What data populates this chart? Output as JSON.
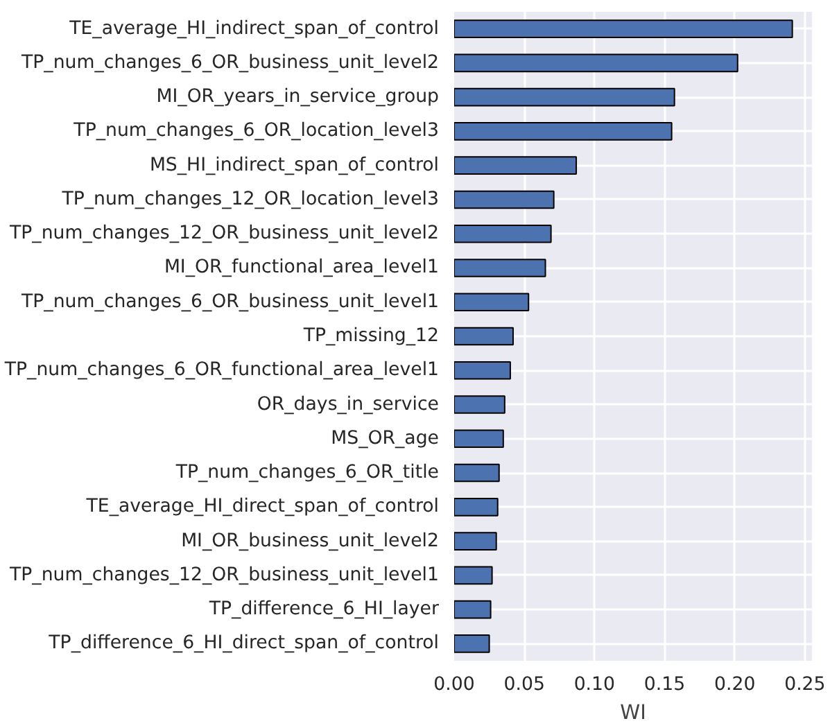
{
  "chart_data": {
    "type": "bar",
    "orientation": "horizontal",
    "xlabel": "WI",
    "categories": [
      "TE_average_HI_indirect_span_of_control",
      "TP_num_changes_6_OR_business_unit_level2",
      "MI_OR_years_in_service_group",
      "TP_num_changes_6_OR_location_level3",
      "MS_HI_indirect_span_of_control",
      "TP_num_changes_12_OR_location_level3",
      "TP_num_changes_12_OR_business_unit_level2",
      "MI_OR_functional_area_level1",
      "TP_num_changes_6_OR_business_unit_level1",
      "TP_missing_12",
      "TP_num_changes_6_OR_functional_area_level1",
      "OR_days_in_service",
      "MS_OR_age",
      "TP_num_changes_6_OR_title",
      "TE_average_HI_direct_span_of_control",
      "MI_OR_business_unit_level2",
      "TP_num_changes_12_OR_business_unit_level1",
      "TP_difference_6_HI_layer",
      "TP_difference_6_HI_direct_span_of_control"
    ],
    "values": [
      0.241,
      0.202,
      0.157,
      0.155,
      0.087,
      0.071,
      0.069,
      0.065,
      0.053,
      0.042,
      0.04,
      0.036,
      0.035,
      0.032,
      0.031,
      0.03,
      0.027,
      0.026,
      0.025
    ],
    "color": "#4c72b0",
    "xlim": [
      0,
      0.255
    ],
    "xticks": [
      {
        "value": 0,
        "label": "0.00"
      },
      0.05,
      {
        "value": 0.1,
        "label": "0.10"
      },
      0.15,
      {
        "value": 0.2,
        "label": "0.20"
      },
      0.25
    ],
    "grid": true
  }
}
